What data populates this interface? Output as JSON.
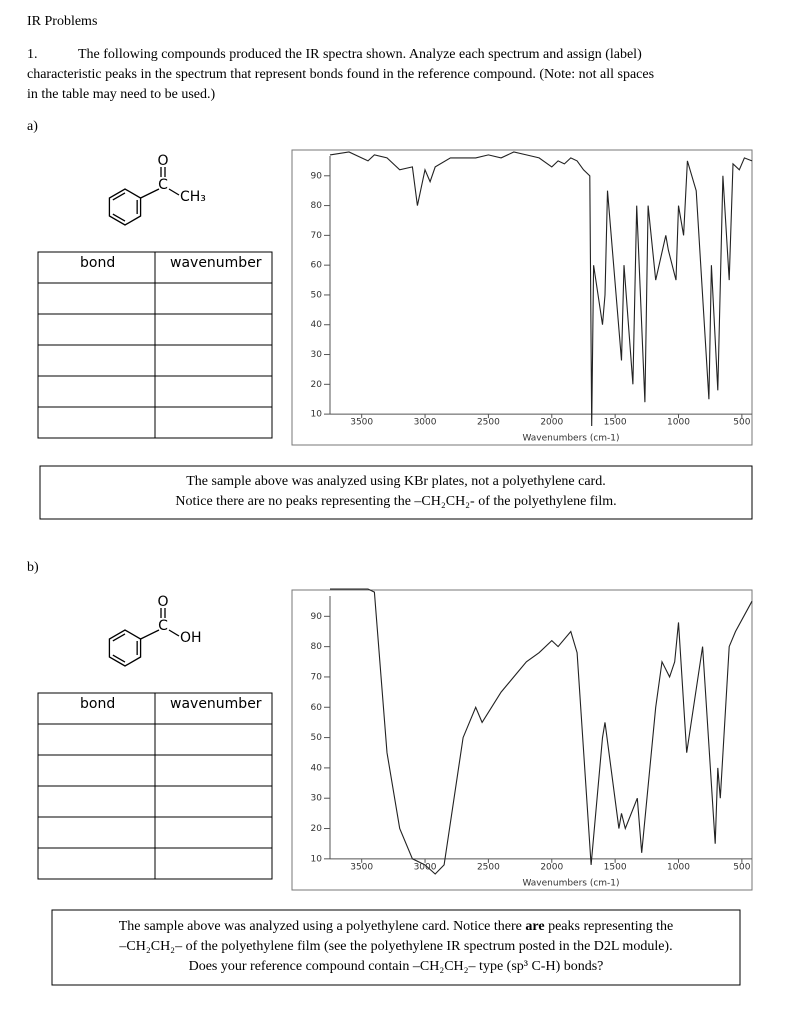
{
  "header": {
    "title": "IR Problems"
  },
  "question": {
    "number": "1.",
    "lines": [
      "The following compounds produced the IR spectra shown. Analyze each spectrum and assign (label)",
      "characteristic peaks in the spectrum that represent bonds found in the reference compound. (Note: not all spaces",
      "in the table may need to be used.)"
    ]
  },
  "parts": [
    {
      "label": "a)",
      "compound": {
        "carbonyl_o": "O",
        "carbon": "C",
        "substituent": "CH₃"
      },
      "table": {
        "headers": [
          "bond",
          "wavenumber"
        ]
      },
      "spectrum": {
        "type": "line",
        "x_label": "Wavenumbers (cm-1)",
        "x": [
          3750,
          3600,
          3450,
          3400,
          3300,
          3200,
          3100,
          3060,
          3000,
          2960,
          2920,
          2800,
          2600,
          2500,
          2400,
          2300,
          2200,
          2100,
          2000,
          1950,
          1900,
          1850,
          1800,
          1750,
          1700,
          1685,
          1670,
          1600,
          1580,
          1560,
          1450,
          1430,
          1360,
          1330,
          1265,
          1240,
          1180,
          1100,
          1080,
          1020,
          1000,
          960,
          930,
          860,
          760,
          740,
          690,
          650,
          600,
          570,
          520,
          480,
          420
        ],
        "values": [
          97,
          98,
          95,
          97,
          96,
          92,
          93,
          80,
          92,
          88,
          93,
          96,
          96,
          97,
          96,
          98,
          97,
          96,
          93,
          95,
          94,
          96,
          95,
          92,
          90,
          6,
          60,
          40,
          50,
          85,
          28,
          60,
          20,
          80,
          14,
          80,
          55,
          70,
          65,
          55,
          80,
          70,
          95,
          85,
          15,
          60,
          18,
          90,
          55,
          94,
          92,
          96,
          95
        ],
        "xlim": [
          3750,
          420
        ],
        "ylim": [
          5,
          100
        ],
        "xticks": [
          3500,
          3000,
          2500,
          2000,
          1500,
          1000,
          500
        ],
        "yticks": [
          10,
          20,
          30,
          40,
          50,
          60,
          70,
          80,
          90
        ]
      },
      "note": [
        [
          "The sample above was analyzed using KBr plates, not a polyethylene card."
        ],
        [
          "Notice there are no peaks representing the –CH₂CH₂- of the polyethylene film."
        ]
      ]
    },
    {
      "label": "b)",
      "compound": {
        "carbonyl_o": "O",
        "carbon": "C",
        "substituent": "OH"
      },
      "table": {
        "headers": [
          "bond",
          "wavenumber"
        ]
      },
      "spectrum": {
        "type": "line",
        "x_label": "Wavenumbers (cm-1)",
        "x": [
          3750,
          3600,
          3450,
          3400,
          3300,
          3200,
          3100,
          3000,
          2920,
          2850,
          2700,
          2600,
          2550,
          2400,
          2300,
          2200,
          2100,
          2000,
          1950,
          1850,
          1800,
          1690,
          1600,
          1580,
          1470,
          1450,
          1420,
          1325,
          1290,
          1180,
          1130,
          1070,
          1030,
          1000,
          935,
          810,
          710,
          690,
          670,
          600,
          550,
          420
        ],
        "values": [
          99,
          99,
          99,
          98,
          45,
          20,
          10,
          8,
          5,
          8,
          50,
          60,
          55,
          65,
          70,
          75,
          78,
          82,
          80,
          85,
          78,
          8,
          50,
          55,
          20,
          25,
          20,
          30,
          12,
          60,
          75,
          70,
          75,
          88,
          45,
          80,
          15,
          40,
          30,
          80,
          85,
          95
        ],
        "xlim": [
          3750,
          420
        ],
        "ylim": [
          5,
          100
        ],
        "xticks": [
          3500,
          3000,
          2500,
          2000,
          1500,
          1000,
          500
        ],
        "yticks": [
          10,
          20,
          30,
          40,
          50,
          60,
          70,
          80,
          90
        ]
      },
      "note": [
        [
          "The sample above was analyzed using a polyethylene card. Notice there ",
          "are",
          " peaks representing the"
        ],
        [
          "–CH₂CH₂– of the polyethylene film (see the polyethylene IR spectrum posted in the D2L module)."
        ],
        [
          "Does your reference compound contain –CH₂CH₂– type (sp³ C-H) bonds?"
        ]
      ]
    }
  ]
}
